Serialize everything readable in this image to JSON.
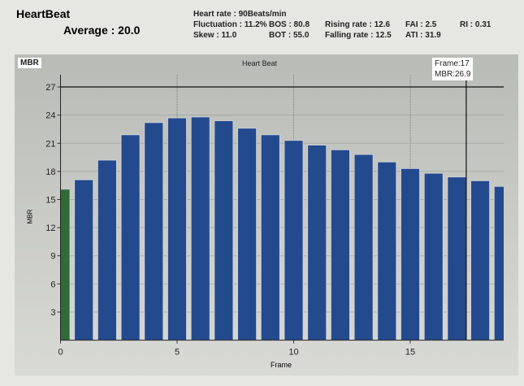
{
  "header": {
    "title": "HeartBeat",
    "average": "Average : 20.0"
  },
  "stats": {
    "heart_rate": "Heart rate : 90Beats/min",
    "fluctuation": "Fluctuation : 11.2%",
    "bos": "BOS : 80.8",
    "rising": "Rising rate : 12.6",
    "fai": "FAI : 2.5",
    "ri": "RI : 0.31",
    "skew": "Skew : 11.0",
    "bot": "BOT : 55.0",
    "falling": "Falling rate : 12.5",
    "ati": "ATI : 31.9"
  },
  "cursor": {
    "frame_label": "Frame:17",
    "mbr_label": "MBR:26.9",
    "frame": 17.4,
    "mbr": 27
  },
  "colors": {
    "bar": "#244a8e",
    "highlight": "#2e6b35"
  },
  "chart_data": {
    "type": "bar",
    "title": "Heart Beat",
    "corner_label": "MBR",
    "xlabel": "Frame",
    "ylabel": "MBR",
    "x": [
      0,
      1,
      2,
      3,
      4,
      5,
      6,
      7,
      8,
      9,
      10,
      11,
      12,
      13,
      14,
      15,
      16,
      17,
      18,
      19
    ],
    "values": [
      16.1,
      17.1,
      19.2,
      21.9,
      23.2,
      23.7,
      23.8,
      23.4,
      22.6,
      21.9,
      21.3,
      20.8,
      20.3,
      19.8,
      19.0,
      18.3,
      17.8,
      17.4,
      17.0,
      16.4
    ],
    "highlight_index": 0,
    "xlim": [
      0,
      19
    ],
    "ylim": [
      0,
      28
    ],
    "xticks": [
      "0",
      "5",
      "10",
      "15"
    ],
    "yticks": [
      "3",
      "6",
      "9",
      "12",
      "15",
      "18",
      "21",
      "24",
      "27"
    ]
  }
}
